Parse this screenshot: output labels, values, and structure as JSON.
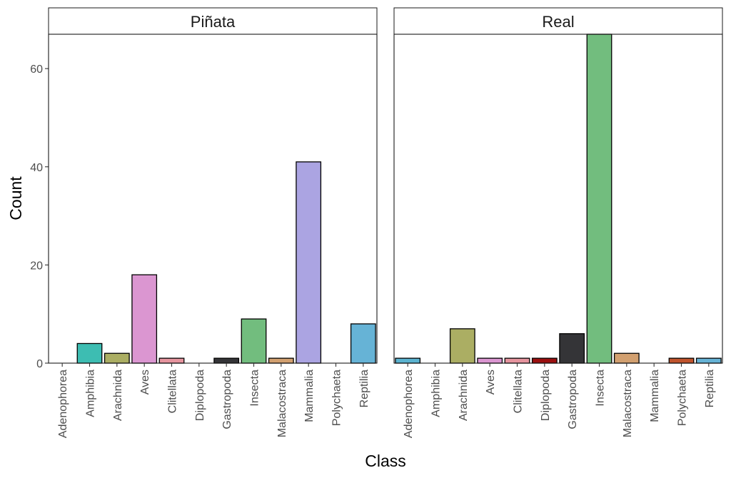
{
  "chart_data": {
    "type": "bar",
    "xlabel": "Class",
    "ylabel": "Count",
    "ylim": [
      0,
      67
    ],
    "y_ticks": [
      0,
      20,
      40,
      60
    ],
    "y_tick_labels": [
      "0",
      "20",
      "40",
      "60"
    ],
    "grid": false,
    "legend": "none",
    "categories": [
      "Adenophorea",
      "Amphibia",
      "Arachnida",
      "Aves",
      "Clitellata",
      "Diplopoda",
      "Gastropoda",
      "Insecta",
      "Malacostraca",
      "Mammalia",
      "Polychaeta",
      "Reptilia"
    ],
    "category_colors": {
      "Adenophorea": "#5bb3d0",
      "Amphibia": "#3dbdb2",
      "Arachnida": "#abae63",
      "Aves": "#db96d1",
      "Clitellata": "#e6949e",
      "Diplopoda": "#9b1010",
      "Gastropoda": "#343437",
      "Insecta": "#72bd7e",
      "Malacostraca": "#d2a070",
      "Mammalia": "#aba4e2",
      "Polychaeta": "#c0542d",
      "Reptilia": "#66b3d6"
    },
    "panels": [
      {
        "name": "Piñata",
        "values": [
          0,
          4,
          2,
          18,
          1,
          0,
          1,
          9,
          1,
          41,
          0,
          8
        ]
      },
      {
        "name": "Real",
        "values": [
          1,
          0,
          7,
          1,
          1,
          1,
          6,
          67,
          2,
          0,
          1,
          1
        ]
      }
    ]
  }
}
